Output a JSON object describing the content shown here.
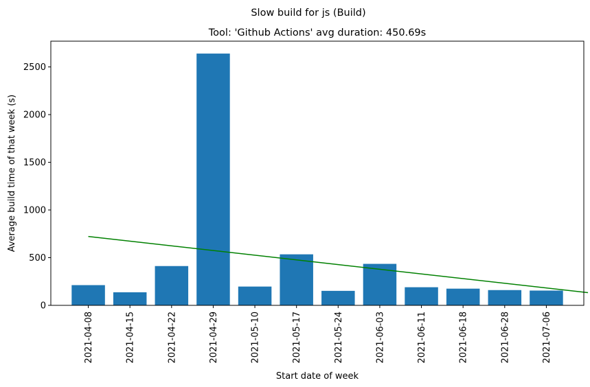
{
  "chart_data": {
    "type": "bar",
    "suptitle": "Slow build for js (Build)",
    "title": "Tool: 'Github Actions' avg duration: 450.69s",
    "xlabel": "Start date of week",
    "ylabel": "Average build time of that week (s)",
    "categories": [
      "2021-04-08",
      "2021-04-15",
      "2021-04-22",
      "2021-04-29",
      "2021-05-10",
      "2021-05-17",
      "2021-05-24",
      "2021-06-03",
      "2021-06-11",
      "2021-06-18",
      "2021-06-28",
      "2021-07-06"
    ],
    "values": [
      212,
      137,
      412,
      2640,
      197,
      535,
      152,
      435,
      190,
      175,
      160,
      155
    ],
    "trend_line": {
      "start": 722,
      "end": 133,
      "color": "#008000"
    },
    "bar_color": "#1f77b4",
    "ylim": [
      0,
      2770
    ],
    "yticks": [
      0,
      500,
      1000,
      1500,
      2000,
      2500
    ],
    "grid": false,
    "legend": "none"
  }
}
